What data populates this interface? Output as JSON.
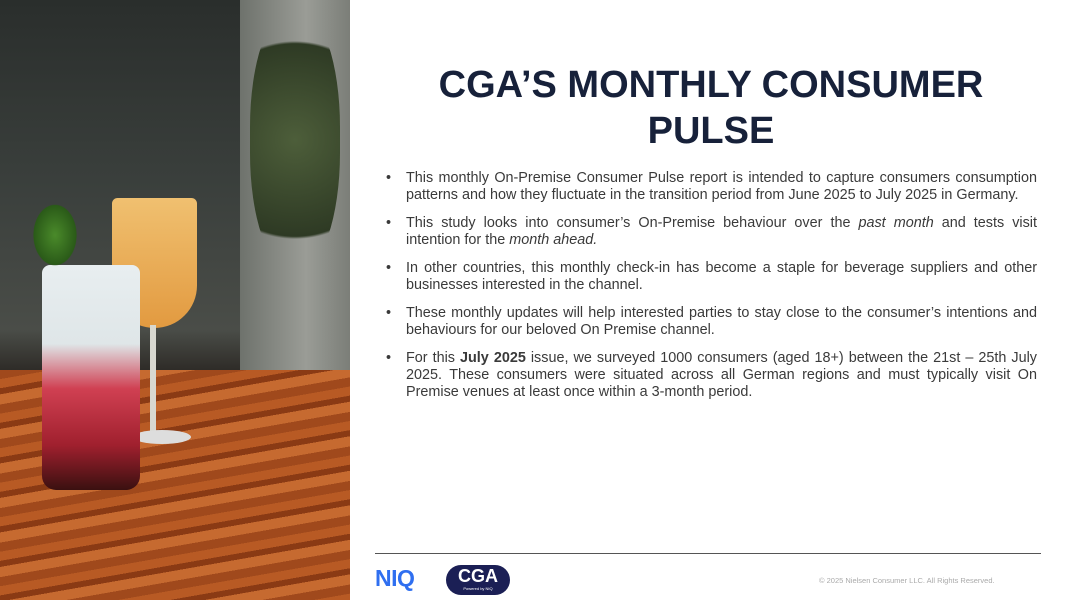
{
  "title": "CGA’S MONTHLY CONSUMER PULSE",
  "bullets": [
    {
      "parts": [
        "This monthly On-Premise Consumer Pulse report is intended to capture consumers consumption patterns and how they fluctuate in the transition period from June 2025 to July 2025 in Germany."
      ]
    },
    {
      "parts": [
        "This study looks into consumer’s On-Premise behaviour over the ",
        "past month",
        " and tests visit intention for the ",
        "month ahead."
      ]
    },
    {
      "parts": [
        "In other countries, this monthly check-in has become a staple for beverage suppliers and other businesses interested in the channel."
      ]
    },
    {
      "parts": [
        "These monthly updates will help interested parties to stay close to the consumer’s intentions and behaviours for our beloved On Premise channel."
      ]
    },
    {
      "parts": [
        "For this ",
        "July 2025",
        " issue, we surveyed 1000 consumers (aged 18+) between the 21st – 25th July 2025. These consumers were situated across all German regions and must typically visit On Premise venues at least once within a 3-month period."
      ]
    }
  ],
  "bullet_char": "•",
  "footer": {
    "niq_logo": "NIQ",
    "cga_logo": "CGA",
    "cga_tagline": "Powered by NIQ",
    "copyright": "© 2025 Nielsen Consumer LLC. All Rights Reserved."
  },
  "colors": {
    "title": "#17213a",
    "niq": "#2f6ff0",
    "cga": "#1b1f55"
  }
}
